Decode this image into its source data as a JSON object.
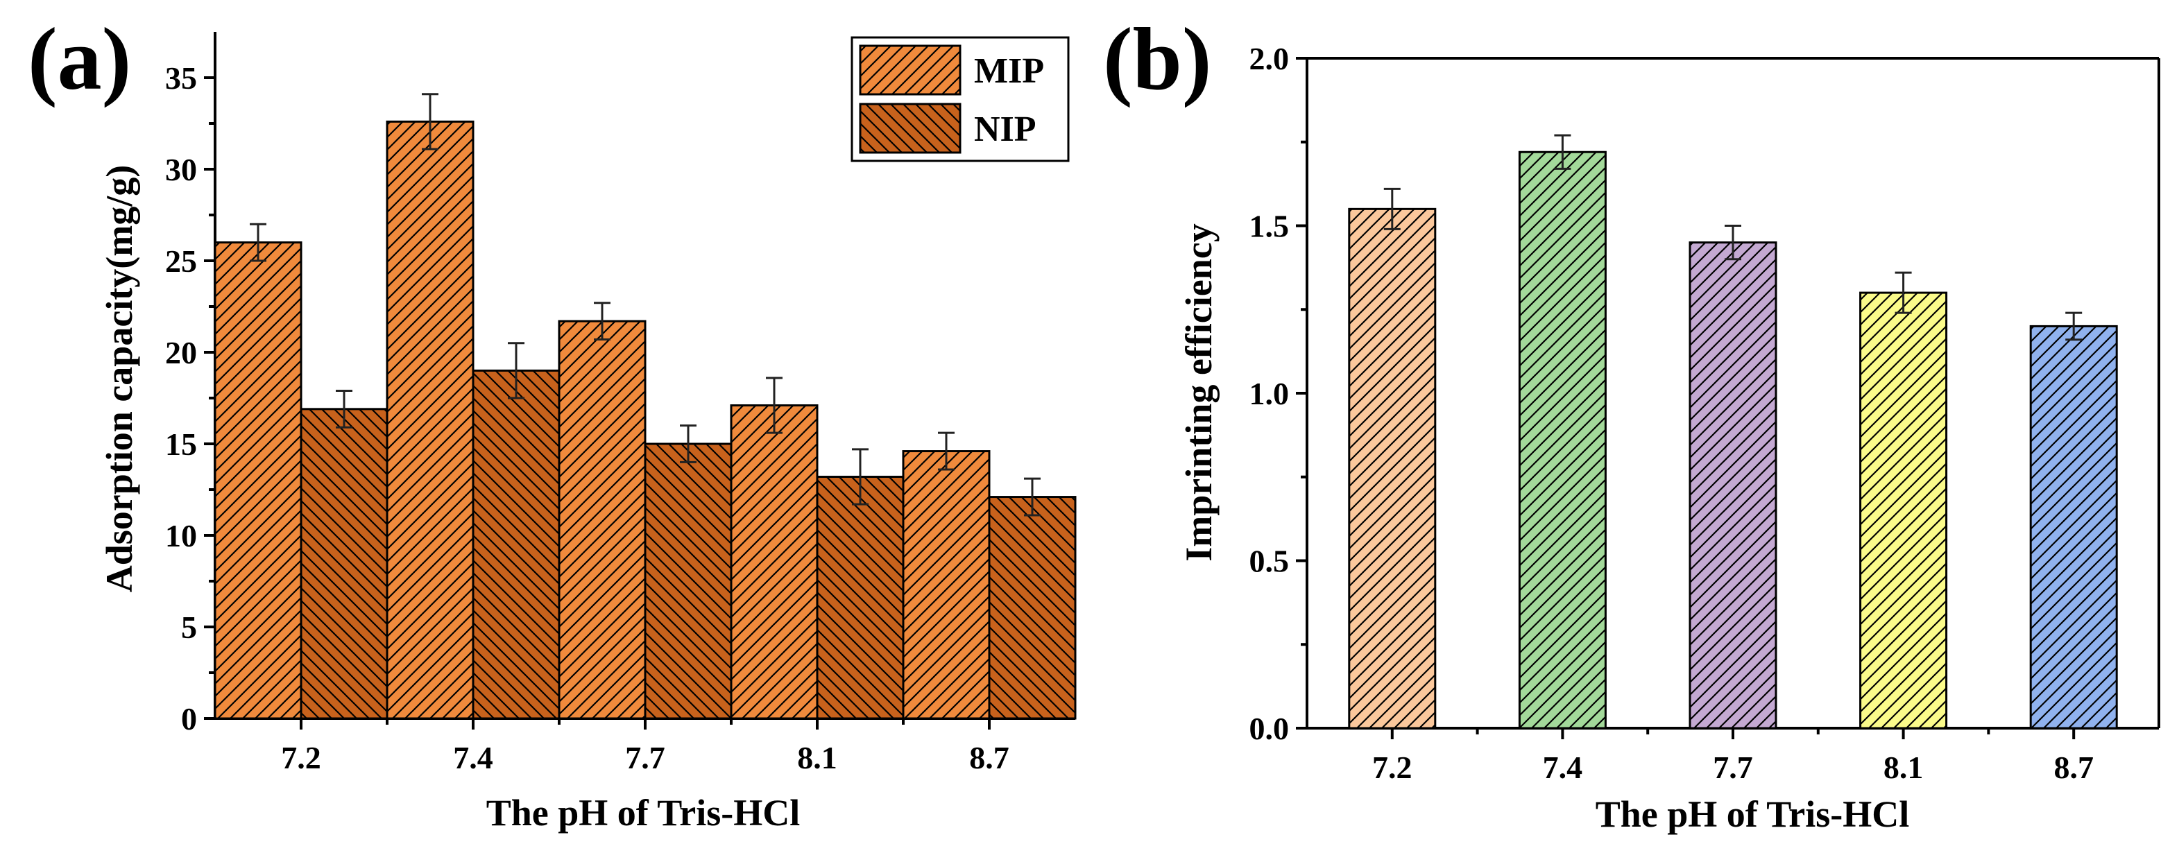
{
  "chart_data": [
    {
      "panel": "(a)",
      "type": "bar",
      "xlabel": "The pH of Tris-HCl",
      "ylabel": "Adsorption capacity(mg/g)",
      "categories": [
        "7.2",
        "7.4",
        "7.7",
        "8.1",
        "8.7"
      ],
      "ylim": [
        0,
        37.5
      ],
      "yticks": [
        "0",
        "5",
        "10",
        "15",
        "20",
        "25",
        "30",
        "35"
      ],
      "legend_position": "top-right",
      "series": [
        {
          "name": "MIP",
          "color": "#f08a3c",
          "hatch": "forward",
          "values": [
            26.0,
            32.6,
            21.7,
            17.1,
            14.6
          ],
          "errors": [
            1.0,
            1.5,
            1.0,
            1.5,
            1.0
          ]
        },
        {
          "name": "NIP",
          "color": "#c8621c",
          "hatch": "backward",
          "values": [
            16.9,
            19.0,
            15.0,
            13.2,
            12.1
          ],
          "errors": [
            1.0,
            1.5,
            1.0,
            1.5,
            1.0
          ]
        }
      ]
    },
    {
      "panel": "(b)",
      "type": "bar",
      "xlabel": "The pH of Tris-HCl",
      "ylabel": "Imprinting efficiency",
      "categories": [
        "7.2",
        "7.4",
        "7.7",
        "8.1",
        "8.7"
      ],
      "ylim": [
        0,
        2.0
      ],
      "yticks": [
        "0.0",
        "0.5",
        "1.0",
        "1.5",
        "2.0"
      ],
      "series": [
        {
          "name": "Imprinting efficiency",
          "values": [
            1.55,
            1.72,
            1.45,
            1.3,
            1.2
          ],
          "errors": [
            0.06,
            0.05,
            0.05,
            0.06,
            0.04
          ],
          "colors": [
            "#fbc89c",
            "#a3d99a",
            "#c4a9d2",
            "#fbfb8a",
            "#90b2ee"
          ]
        }
      ]
    }
  ]
}
